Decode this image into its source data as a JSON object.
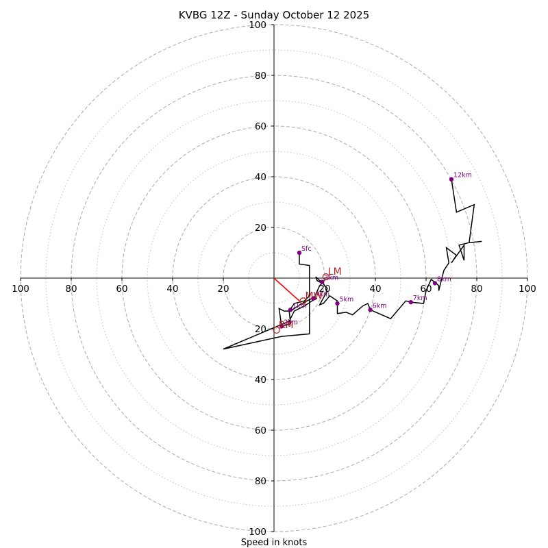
{
  "chart_data": {
    "type": "hodograph",
    "title": "KVBG 12Z - Sunday October 12 2025",
    "xlabel": "Speed in knots",
    "axis_range": [
      -100,
      100
    ],
    "ring_speeds_major": [
      20,
      40,
      60,
      80,
      100
    ],
    "ring_speeds_minor": [
      10,
      30,
      50,
      70,
      90
    ],
    "x_ticks": [
      {
        "value": -100,
        "label": "100"
      },
      {
        "value": -80,
        "label": "80"
      },
      {
        "value": -60,
        "label": "60"
      },
      {
        "value": -40,
        "label": "40"
      },
      {
        "value": -20,
        "label": "20"
      },
      {
        "value": 20,
        "label": "20"
      },
      {
        "value": 40,
        "label": "40"
      },
      {
        "value": 60,
        "label": "60"
      },
      {
        "value": 80,
        "label": "80"
      },
      {
        "value": 100,
        "label": "100"
      }
    ],
    "y_ticks": [
      {
        "value": 100,
        "label": "100"
      },
      {
        "value": 80,
        "label": "80"
      },
      {
        "value": 60,
        "label": "60"
      },
      {
        "value": 40,
        "label": "40"
      },
      {
        "value": 20,
        "label": "20"
      },
      {
        "value": -20,
        "label": "20"
      },
      {
        "value": -40,
        "label": "40"
      },
      {
        "value": -60,
        "label": "60"
      },
      {
        "value": -80,
        "label": "80"
      },
      {
        "value": -100,
        "label": "100"
      }
    ],
    "colors": {
      "trace": "#000000",
      "height_marker": "#800080",
      "storm_motion": "#b22222",
      "shear_vector": "#ff0000",
      "grid": "#b0b0b0"
    },
    "trace": [
      [
        10,
        10
      ],
      [
        10,
        5.5
      ],
      [
        14,
        5
      ],
      [
        14,
        -7
      ],
      [
        12,
        -9
      ],
      [
        8,
        -10
      ],
      [
        6,
        -13
      ],
      [
        6.5,
        -18
      ],
      [
        3,
        -19
      ],
      [
        2,
        -12
      ],
      [
        4,
        -13
      ],
      [
        6.5,
        -13
      ],
      [
        8,
        -12
      ],
      [
        11,
        -10
      ],
      [
        13,
        -9
      ],
      [
        15,
        -8
      ],
      [
        16,
        -7.5
      ],
      [
        18,
        -3
      ],
      [
        19,
        -2
      ],
      [
        17,
        -1
      ],
      [
        16.5,
        0.5
      ],
      [
        18,
        -1
      ],
      [
        19,
        -1.5
      ],
      [
        20,
        -3
      ],
      [
        21,
        -4
      ],
      [
        20.5,
        -6
      ],
      [
        18,
        -10.5
      ],
      [
        19.5,
        -10
      ],
      [
        22,
        -7
      ],
      [
        25,
        -9
      ],
      [
        25,
        -14
      ],
      [
        28.5,
        -13.5
      ],
      [
        31,
        -14.5
      ],
      [
        35,
        -11
      ],
      [
        37,
        -10
      ],
      [
        38,
        -12.5
      ],
      [
        46,
        -16
      ],
      [
        52,
        -9
      ],
      [
        54,
        -9.5
      ],
      [
        59,
        -10
      ],
      [
        60,
        -5
      ],
      [
        62,
        -0.5
      ],
      [
        64,
        -2
      ],
      [
        65,
        -3
      ],
      [
        65,
        -5
      ],
      [
        67,
        3
      ],
      [
        69,
        6
      ],
      [
        68,
        12
      ],
      [
        72,
        9
      ],
      [
        70,
        6
      ],
      [
        75,
        13
      ],
      [
        75,
        7
      ],
      [
        73,
        13
      ],
      [
        77,
        14
      ],
      [
        82,
        14.5
      ],
      [
        77,
        14
      ],
      [
        79,
        29
      ],
      [
        72,
        26
      ],
      [
        70,
        39
      ]
    ],
    "trace_low_branch": [
      [
        14,
        -8
      ],
      [
        14,
        -22
      ],
      [
        3,
        -23
      ],
      [
        -20,
        -28
      ],
      [
        6,
        -17
      ],
      [
        8,
        -13
      ],
      [
        12,
        -11
      ],
      [
        15,
        -9
      ],
      [
        17,
        -8
      ]
    ],
    "height_markers": [
      {
        "label": "Sfc",
        "u": 10,
        "v": 10
      },
      {
        "label": "1km",
        "u": 6.5,
        "v": -12.5
      },
      {
        "label": "2km",
        "u": 3,
        "v": -19
      },
      {
        "label": "3km",
        "u": 19,
        "v": -1.5
      },
      {
        "label": "4km",
        "u": 15.5,
        "v": -8
      },
      {
        "label": "5km",
        "u": 25,
        "v": -10
      },
      {
        "label": "6km",
        "u": 38,
        "v": -12.5
      },
      {
        "label": "7km",
        "u": 54,
        "v": -9.5
      },
      {
        "label": "8km",
        "u": 63.5,
        "v": -2
      },
      {
        "label": "12km",
        "u": 70,
        "v": 39
      }
    ],
    "storm_motion": [
      {
        "label": "LM",
        "u": 20.5,
        "v": 0.5
      },
      {
        "label": "MW",
        "u": 11.5,
        "v": -9
      },
      {
        "label": "RM",
        "u": 1,
        "v": -20.5
      }
    ],
    "shear_vector": {
      "from": [
        0,
        0
      ],
      "to": [
        10,
        -9
      ]
    }
  }
}
